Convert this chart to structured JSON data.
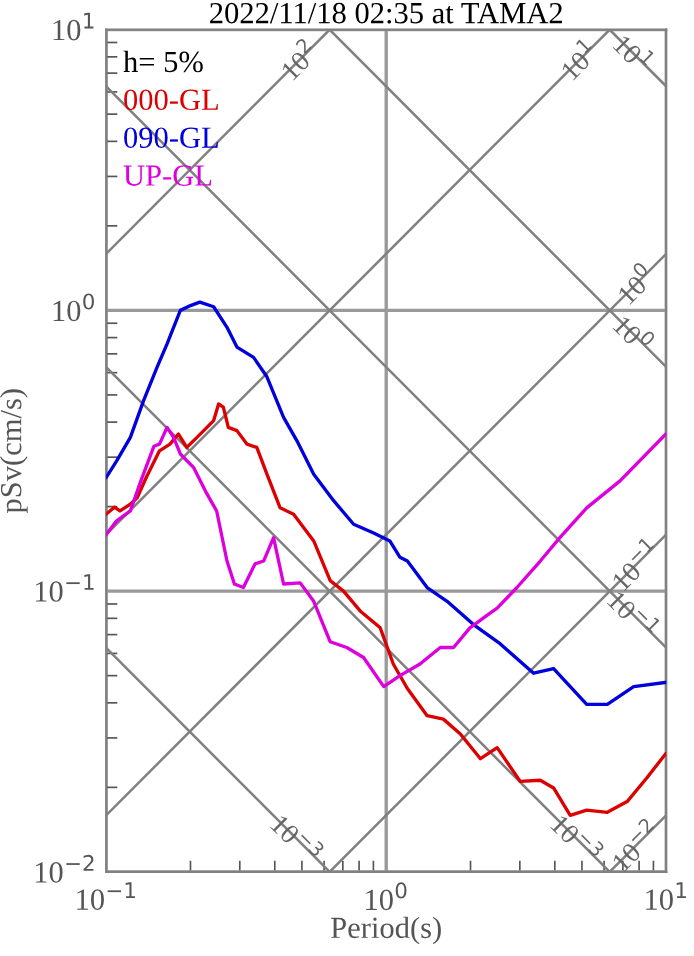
{
  "chart_data": {
    "type": "line",
    "title": "2022/11/18 02:35 at TAMA2",
    "xlabel": "Period(s)",
    "ylabel": "pSv(cm/s)",
    "log": "xy",
    "grid": true,
    "legend": false,
    "xlim": [
      0.1,
      10
    ],
    "ylim": [
      0.01,
      10
    ],
    "xticks": [
      {
        "value": 0.1,
        "label": "10$^{−1}$"
      },
      {
        "value": 1,
        "label": "10$^{0}$"
      },
      {
        "value": 10,
        "label": "10$^{1}$"
      }
    ],
    "yticks": [
      {
        "value": 0.01,
        "label": "10$^{−2}$"
      },
      {
        "value": 0.1,
        "label": "10$^{−1}$"
      },
      {
        "value": 1,
        "label": "10$^{0}$"
      },
      {
        "value": 10,
        "label": "10$^{1}$"
      }
    ],
    "annotations": [
      "h= 5%"
    ],
    "series": [
      {
        "name": "10$^{2}$",
        "color": "#808080",
        "x": [
          0.1,
          0.628
        ],
        "values": [
          1.59,
          10
        ]
      },
      {
        "name": "10$^{1}$",
        "color": "#808080",
        "x": [
          0.1,
          6.28
        ],
        "values": [
          0.159,
          10
        ]
      },
      {
        "name": "10$^{0}$",
        "color": "#808080",
        "x": [
          0.1,
          10
        ],
        "values": [
          0.0159,
          1.59
        ]
      },
      {
        "name": "10$^{−1}$",
        "color": "#808080",
        "x": [
          0.628,
          10
        ],
        "values": [
          0.01,
          0.159
        ]
      },
      {
        "name": "10$^{−2}$",
        "color": "#808080",
        "x": [
          6.28,
          10
        ],
        "values": [
          0.01,
          0.0159
        ]
      },
      {
        "name": "10$^{1}$",
        "color": "#808080",
        "x": [
          6.28,
          10
        ],
        "values": [
          10,
          6.28
        ]
      },
      {
        "name": "10$^{0}$",
        "color": "#808080",
        "x": [
          0.628,
          10
        ],
        "values": [
          10,
          0.628
        ]
      },
      {
        "name": "10$^{−1}$",
        "color": "#808080",
        "x": [
          0.1,
          10
        ],
        "values": [
          6.28,
          0.0628
        ]
      },
      {
        "name": "10$^{−3}$",
        "color": "#808080",
        "x": [
          0.1,
          6.28
        ],
        "values": [
          0.628,
          0.01
        ]
      },
      {
        "name": "10$^{−3}$",
        "color": "#808080",
        "x": [
          0.1,
          0.628
        ],
        "values": [
          0.0628,
          0.01
        ]
      },
      {
        "name": "000-GL",
        "color": "#dd0000",
        "x": [
          0.1,
          0.107,
          0.112,
          0.122,
          0.129,
          0.139,
          0.155,
          0.169,
          0.181,
          0.194,
          0.211,
          0.229,
          0.242,
          0.252,
          0.262,
          0.273,
          0.293,
          0.318,
          0.345,
          0.375,
          0.418,
          0.467,
          0.551,
          0.631,
          0.704,
          0.807,
          0.952,
          1.06,
          1.19,
          1.4,
          1.6,
          1.84,
          2.17,
          2.49,
          3.01,
          3.55,
          3.96,
          4.54,
          5.2,
          6.16,
          7.25,
          8.52,
          9.94
        ],
        "values": [
          0.188,
          0.199,
          0.193,
          0.204,
          0.215,
          0.254,
          0.316,
          0.334,
          0.363,
          0.325,
          0.353,
          0.383,
          0.405,
          0.464,
          0.452,
          0.383,
          0.373,
          0.334,
          0.325,
          0.261,
          0.198,
          0.188,
          0.151,
          0.109,
          0.1,
          0.085,
          0.074,
          0.055,
          0.045,
          0.036,
          0.035,
          0.031,
          0.0253,
          0.0277,
          0.021,
          0.0212,
          0.0199,
          0.0159,
          0.0166,
          0.0163,
          0.0178,
          0.0216,
          0.0263
        ]
      },
      {
        "name": "090-GL",
        "color": "#0000dd",
        "x": [
          0.1,
          0.109,
          0.122,
          0.136,
          0.152,
          0.165,
          0.184,
          0.2,
          0.216,
          0.242,
          0.27,
          0.293,
          0.336,
          0.375,
          0.43,
          0.48,
          0.551,
          0.649,
          0.765,
          0.902,
          1.03,
          1.12,
          1.19,
          1.4,
          1.65,
          2.05,
          2.55,
          3.36,
          3.96,
          5.2,
          6.16,
          7.65,
          9.94
        ],
        "values": [
          0.254,
          0.291,
          0.353,
          0.477,
          0.628,
          0.76,
          1.0,
          1.04,
          1.07,
          1.03,
          0.87,
          0.74,
          0.68,
          0.58,
          0.416,
          0.343,
          0.261,
          0.21,
          0.173,
          0.161,
          0.151,
          0.132,
          0.128,
          0.103,
          0.092,
          0.076,
          0.065,
          0.051,
          0.053,
          0.0395,
          0.0395,
          0.0457,
          0.0473
        ]
      },
      {
        "name": "UP-GL",
        "color": "#dd00dd",
        "x": [
          0.1,
          0.109,
          0.122,
          0.133,
          0.148,
          0.155,
          0.165,
          0.174,
          0.184,
          0.205,
          0.229,
          0.248,
          0.27,
          0.287,
          0.309,
          0.34,
          0.365,
          0.396,
          0.43,
          0.493,
          0.551,
          0.631,
          0.723,
          0.83,
          0.98,
          1.12,
          1.32,
          1.56,
          1.74,
          1.99,
          2.29,
          2.49,
          2.93,
          3.55,
          4.17,
          5.2,
          6.84,
          9.94
        ],
        "values": [
          0.159,
          0.178,
          0.193,
          0.247,
          0.328,
          0.334,
          0.383,
          0.353,
          0.308,
          0.276,
          0.222,
          0.193,
          0.128,
          0.106,
          0.103,
          0.125,
          0.128,
          0.155,
          0.106,
          0.107,
          0.092,
          0.066,
          0.063,
          0.058,
          0.0457,
          0.05,
          0.055,
          0.063,
          0.063,
          0.074,
          0.082,
          0.087,
          0.103,
          0.128,
          0.155,
          0.198,
          0.247,
          0.362
        ]
      }
    ]
  }
}
